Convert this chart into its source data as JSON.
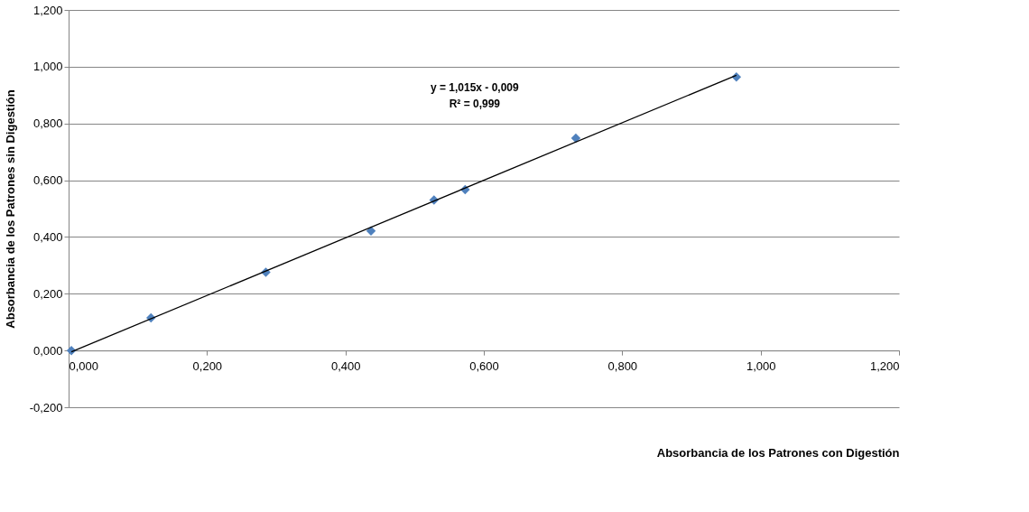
{
  "chart_data": {
    "type": "scatter",
    "xlabel": "Absorbancia de los Patrones con Digestión",
    "ylabel": "Absorbancia de los Patrones sin Digestión",
    "series": [
      {
        "color": "#4f81bd",
        "marker": "diamond",
        "x": [
          0.004,
          0.119,
          0.285,
          0.437,
          0.528,
          0.573,
          0.733,
          0.965
        ],
        "values": [
          0.0,
          0.115,
          0.276,
          0.421,
          0.53,
          0.567,
          0.748,
          0.964
        ]
      },
      {
        "type": "line",
        "color": "#000000",
        "x": [
          0.004,
          0.965
        ],
        "values": [
          -0.005,
          0.97
        ]
      }
    ],
    "annotations": [
      "y = 1,015x - 0,009",
      "R² = 0,999"
    ],
    "xlim": [
      0,
      1.2
    ],
    "ylim": [
      -0.2,
      1.2
    ],
    "xticks": [
      {
        "value": 0,
        "label": "0,000"
      },
      {
        "value": 0.2,
        "label": "0,200"
      },
      {
        "value": 0.4,
        "label": "0,400"
      },
      {
        "value": 0.6,
        "label": "0,600"
      },
      {
        "value": 0.8,
        "label": "0,800"
      },
      {
        "value": 1.0,
        "label": "1,000"
      },
      {
        "value": 1.2,
        "label": "1,200"
      }
    ],
    "yticks": [
      {
        "value": -0.2,
        "label": "-0,200"
      },
      {
        "value": 0,
        "label": "0,000"
      },
      {
        "value": 0.2,
        "label": "0,200"
      },
      {
        "value": 0.4,
        "label": "0,400"
      },
      {
        "value": 0.6,
        "label": "0,600"
      },
      {
        "value": 0.8,
        "label": "0,800"
      },
      {
        "value": 1.0,
        "label": "1,000"
      },
      {
        "value": 1.2,
        "label": "1,200"
      }
    ],
    "grid": "y"
  }
}
